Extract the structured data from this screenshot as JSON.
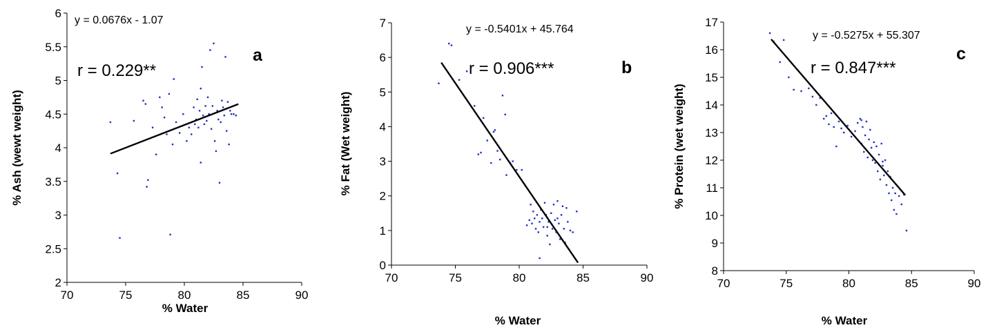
{
  "chart_data": [
    {
      "type": "scatter",
      "panel_label": "a",
      "equation": "y = 0.0676x - 1.07",
      "r_text": "r = 0.229**",
      "xlabel": "% Water",
      "ylabel": "% Ash (wewt weight)",
      "xlim": [
        70,
        90
      ],
      "ylim": [
        2,
        6
      ],
      "xticks": [
        "70",
        "75",
        "80",
        "85",
        "90"
      ],
      "yticks": [
        "2",
        "2.5",
        "3",
        "3.5",
        "4",
        "4.5",
        "5",
        "5.5",
        "6"
      ],
      "grid": false,
      "colors": {
        "points": "#1f2fbf",
        "line": "#000000"
      },
      "trendline": {
        "slope": 0.0676,
        "intercept": -1.07,
        "x_range": [
          73.7,
          84.6
        ]
      },
      "points": [
        [
          73.7,
          4.38
        ],
        [
          74.3,
          3.62
        ],
        [
          74.5,
          2.66
        ],
        [
          75.7,
          4.4
        ],
        [
          76.5,
          4.7
        ],
        [
          76.8,
          3.42
        ],
        [
          76.9,
          3.52
        ],
        [
          76.7,
          4.65
        ],
        [
          77.3,
          4.3
        ],
        [
          77.6,
          3.9
        ],
        [
          77.9,
          4.75
        ],
        [
          78.1,
          4.6
        ],
        [
          78.3,
          4.45
        ],
        [
          78.5,
          4.2
        ],
        [
          78.7,
          4.8
        ],
        [
          78.8,
          2.71
        ],
        [
          79.0,
          4.05
        ],
        [
          79.1,
          5.02
        ],
        [
          79.3,
          4.38
        ],
        [
          79.6,
          4.22
        ],
        [
          79.9,
          4.5
        ],
        [
          80.2,
          4.1
        ],
        [
          80.4,
          4.3
        ],
        [
          80.6,
          4.2
        ],
        [
          80.8,
          4.6
        ],
        [
          81.0,
          4.42
        ],
        [
          81.1,
          4.72
        ],
        [
          81.2,
          4.3
        ],
        [
          81.3,
          4.55
        ],
        [
          81.4,
          4.88
        ],
        [
          81.5,
          5.2
        ],
        [
          81.6,
          4.48
        ],
        [
          81.7,
          4.35
        ],
        [
          81.8,
          4.62
        ],
        [
          81.9,
          4.4
        ],
        [
          82.0,
          4.75
        ],
        [
          82.1,
          4.5
        ],
        [
          82.2,
          5.45
        ],
        [
          82.3,
          4.28
        ],
        [
          82.4,
          4.62
        ],
        [
          82.5,
          5.55
        ],
        [
          82.6,
          4.1
        ],
        [
          82.7,
          3.95
        ],
        [
          82.8,
          4.55
        ],
        [
          82.9,
          4.42
        ],
        [
          83.0,
          3.48
        ],
        [
          83.1,
          4.38
        ],
        [
          83.2,
          4.7
        ],
        [
          83.3,
          4.6
        ],
        [
          83.4,
          4.48
        ],
        [
          83.5,
          5.35
        ],
        [
          83.6,
          4.25
        ],
        [
          83.7,
          4.68
        ],
        [
          83.8,
          4.05
        ],
        [
          83.9,
          4.55
        ],
        [
          84.0,
          4.5
        ],
        [
          84.2,
          4.5
        ],
        [
          84.4,
          4.48
        ],
        [
          81.4,
          3.78
        ],
        [
          80.9,
          4.35
        ]
      ]
    },
    {
      "type": "scatter",
      "panel_label": "b",
      "equation": "y = -0.5401x + 45.764",
      "r_text": "r = 0.906***",
      "xlabel": "% Water",
      "ylabel": "% Fat (Wet weight)",
      "xlim": [
        70,
        90
      ],
      "ylim": [
        0,
        7
      ],
      "xticks": [
        "70",
        "75",
        "80",
        "85",
        "90"
      ],
      "yticks": [
        "0",
        "1",
        "2",
        "3",
        "4",
        "5",
        "6",
        "7"
      ],
      "grid": false,
      "colors": {
        "points": "#1f2fbf",
        "line": "#000000"
      },
      "trendline": {
        "slope": -0.5401,
        "intercept": 45.764,
        "x_range": [
          73.9,
          84.6
        ]
      },
      "points": [
        [
          73.7,
          5.25
        ],
        [
          74.5,
          6.4
        ],
        [
          74.7,
          6.35
        ],
        [
          75.3,
          5.35
        ],
        [
          75.9,
          5.6
        ],
        [
          76.5,
          4.6
        ],
        [
          76.8,
          3.2
        ],
        [
          77.0,
          3.25
        ],
        [
          77.2,
          4.25
        ],
        [
          77.5,
          3.6
        ],
        [
          77.8,
          2.95
        ],
        [
          78.0,
          3.85
        ],
        [
          78.1,
          3.9
        ],
        [
          78.3,
          3.3
        ],
        [
          78.5,
          3.05
        ],
        [
          78.7,
          4.9
        ],
        [
          78.9,
          4.35
        ],
        [
          79.0,
          2.6
        ],
        [
          79.3,
          2.95
        ],
        [
          79.5,
          3.0
        ],
        [
          79.8,
          2.75
        ],
        [
          80.2,
          2.75
        ],
        [
          80.6,
          1.15
        ],
        [
          80.8,
          1.3
        ],
        [
          80.9,
          1.75
        ],
        [
          81.0,
          1.2
        ],
        [
          81.2,
          1.35
        ],
        [
          81.3,
          1.05
        ],
        [
          81.4,
          1.45
        ],
        [
          81.5,
          0.95
        ],
        [
          81.6,
          1.25
        ],
        [
          81.6,
          0.2
        ],
        [
          81.7,
          1.6
        ],
        [
          81.8,
          1.35
        ],
        [
          81.9,
          1.1
        ],
        [
          82.0,
          1.8
        ],
        [
          82.1,
          1.45
        ],
        [
          82.2,
          0.85
        ],
        [
          82.3,
          1.25
        ],
        [
          82.4,
          0.6
        ],
        [
          82.5,
          1.5
        ],
        [
          82.6,
          1.05
        ],
        [
          82.7,
          1.75
        ],
        [
          82.8,
          1.3
        ],
        [
          82.9,
          0.95
        ],
        [
          83.0,
          1.85
        ],
        [
          83.1,
          1.2
        ],
        [
          83.2,
          0.75
        ],
        [
          83.3,
          1.45
        ],
        [
          83.4,
          1.7
        ],
        [
          83.5,
          1.05
        ],
        [
          83.6,
          0.65
        ],
        [
          83.7,
          1.65
        ],
        [
          83.8,
          1.25
        ],
        [
          84.0,
          1.0
        ],
        [
          84.2,
          0.95
        ],
        [
          84.5,
          1.55
        ],
        [
          81.1,
          1.55
        ],
        [
          82.2,
          1.1
        ],
        [
          83.0,
          1.35
        ]
      ]
    },
    {
      "type": "scatter",
      "panel_label": "c",
      "equation": "y = -0.5275x + 55.307",
      "r_text": "r = 0.847***",
      "xlabel": "% Water",
      "ylabel": "% Protein (wet weight)",
      "xlim": [
        70,
        90
      ],
      "ylim": [
        8,
        17
      ],
      "xticks": [
        "70",
        "75",
        "80",
        "85",
        "90"
      ],
      "yticks": [
        "8",
        "9",
        "10",
        "11",
        "12",
        "13",
        "14",
        "15",
        "16",
        "17"
      ],
      "grid": false,
      "colors": {
        "points": "#1f2fbf",
        "line": "#000000"
      },
      "trendline": {
        "slope": -0.5275,
        "intercept": 55.307,
        "x_range": [
          73.8,
          84.5
        ]
      },
      "points": [
        [
          73.7,
          16.6
        ],
        [
          74.0,
          16.3
        ],
        [
          74.5,
          15.55
        ],
        [
          74.8,
          16.35
        ],
        [
          75.2,
          15.0
        ],
        [
          75.6,
          14.55
        ],
        [
          76.2,
          14.5
        ],
        [
          76.8,
          14.6
        ],
        [
          77.1,
          14.3
        ],
        [
          77.4,
          14.0
        ],
        [
          77.7,
          14.25
        ],
        [
          78.0,
          13.5
        ],
        [
          78.2,
          13.6
        ],
        [
          78.4,
          13.3
        ],
        [
          78.6,
          13.7
        ],
        [
          78.8,
          13.2
        ],
        [
          79.0,
          12.5
        ],
        [
          79.2,
          13.4
        ],
        [
          79.4,
          13.15
        ],
        [
          79.6,
          13.0
        ],
        [
          79.9,
          13.25
        ],
        [
          80.2,
          12.85
        ],
        [
          80.5,
          13.05
        ],
        [
          80.7,
          13.35
        ],
        [
          80.9,
          13.5
        ],
        [
          81.0,
          12.6
        ],
        [
          81.1,
          13.2
        ],
        [
          81.2,
          12.3
        ],
        [
          81.3,
          12.9
        ],
        [
          81.4,
          13.4
        ],
        [
          81.5,
          12.1
        ],
        [
          81.6,
          12.75
        ],
        [
          81.7,
          13.1
        ],
        [
          81.8,
          12.45
        ],
        [
          81.9,
          12.0
        ],
        [
          82.0,
          12.65
        ],
        [
          82.1,
          11.9
        ],
        [
          82.2,
          12.5
        ],
        [
          82.3,
          11.6
        ],
        [
          82.4,
          12.2
        ],
        [
          82.5,
          11.3
        ],
        [
          82.6,
          12.6
        ],
        [
          82.7,
          11.8
        ],
        [
          82.8,
          11.45
        ],
        [
          82.9,
          12.0
        ],
        [
          83.0,
          11.1
        ],
        [
          83.1,
          11.6
        ],
        [
          83.2,
          10.8
        ],
        [
          83.3,
          11.4
        ],
        [
          83.4,
          10.55
        ],
        [
          83.5,
          11.0
        ],
        [
          83.6,
          10.2
        ],
        [
          83.7,
          10.8
        ],
        [
          83.8,
          10.05
        ],
        [
          84.0,
          10.7
        ],
        [
          84.2,
          10.4
        ],
        [
          84.4,
          10.75
        ],
        [
          84.6,
          9.45
        ],
        [
          81.0,
          13.45
        ],
        [
          82.7,
          11.95
        ]
      ]
    }
  ]
}
